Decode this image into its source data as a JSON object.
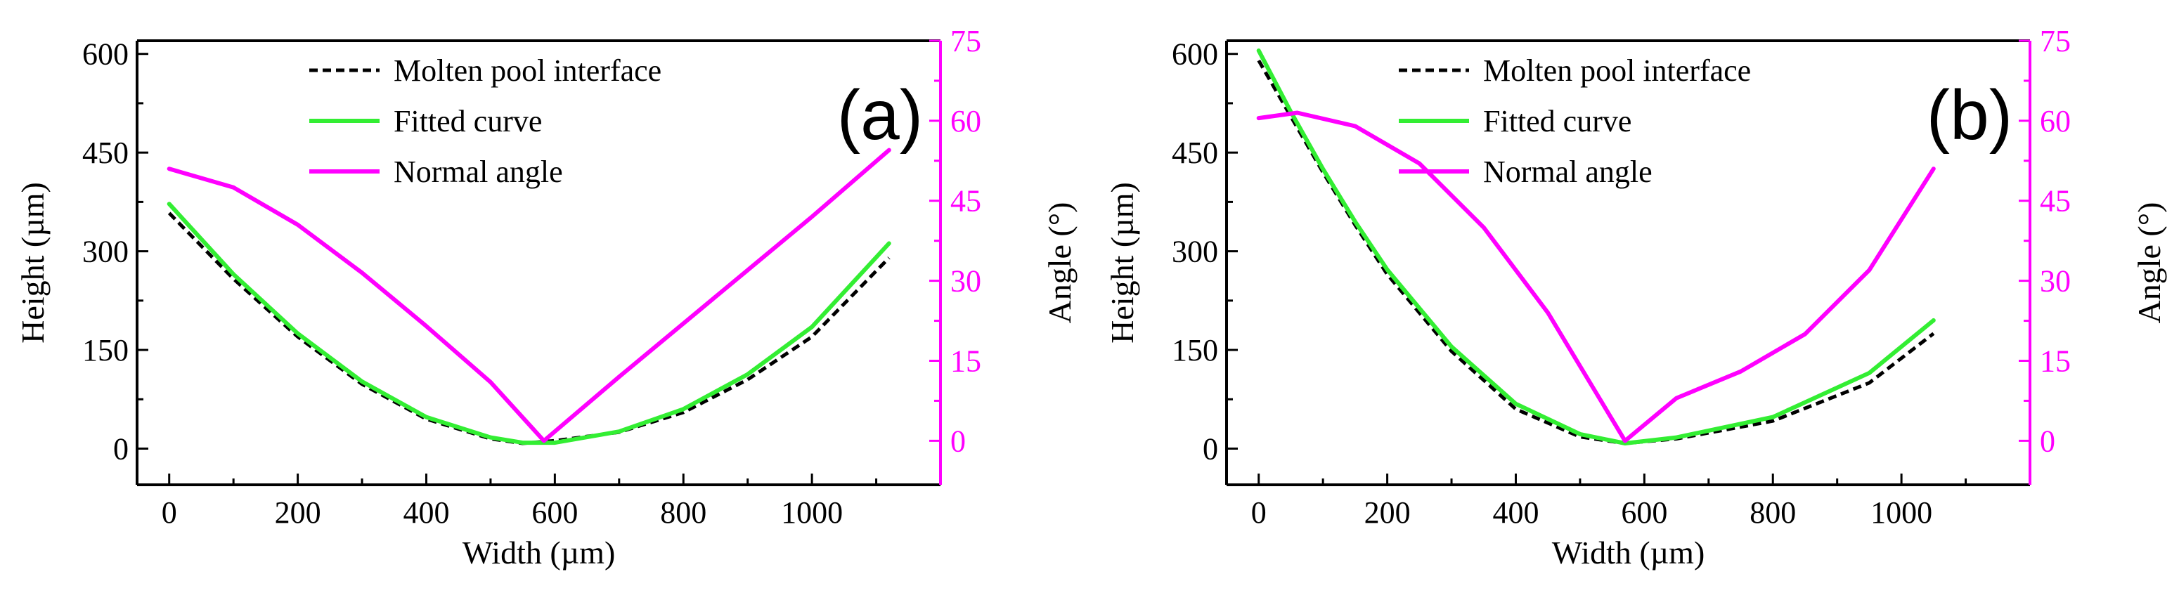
{
  "chart_data": [
    {
      "type": "line",
      "panel_label": "(a)",
      "xlabel": "Width (µm)",
      "ylabel": "Height (µm)",
      "y2label": "Angle (°)",
      "xlim": [
        -50,
        1200
      ],
      "ylim": [
        -55,
        620
      ],
      "y2lim": [
        -8.25,
        75
      ],
      "xticks": [
        0,
        200,
        400,
        600,
        800,
        1000
      ],
      "yticks": [
        0,
        150,
        300,
        450,
        600
      ],
      "y2ticks": [
        0,
        15,
        30,
        45,
        60,
        75
      ],
      "y2_color": "#ff00ff",
      "legend_position": "top-center",
      "grid": false,
      "series": [
        {
          "name": "Molten pool interface",
          "axis": "left",
          "style": "dashed",
          "color": "#000000",
          "x": [
            0,
            100,
            200,
            300,
            400,
            500,
            550,
            600,
            700,
            800,
            900,
            1000,
            1120
          ],
          "y": [
            358,
            258,
            170,
            98,
            45,
            15,
            8,
            12,
            25,
            55,
            105,
            170,
            290
          ]
        },
        {
          "name": "Fitted curve",
          "axis": "left",
          "style": "solid",
          "color": "#33ee33",
          "x": [
            0,
            100,
            200,
            300,
            400,
            500,
            550,
            600,
            700,
            800,
            900,
            1000,
            1120
          ],
          "y": [
            372,
            265,
            175,
            102,
            48,
            17,
            9,
            9,
            26,
            60,
            113,
            185,
            312
          ]
        },
        {
          "name": "Normal angle",
          "axis": "right",
          "style": "solid",
          "color": "#ff00ff",
          "x": [
            0,
            100,
            200,
            300,
            400,
            500,
            583,
            700,
            800,
            900,
            1000,
            1120
          ],
          "y": [
            51,
            47.5,
            40.5,
            31.5,
            21.5,
            11,
            0,
            12,
            22,
            32,
            42,
            54.5
          ]
        }
      ]
    },
    {
      "type": "line",
      "panel_label": "(b)",
      "xlabel": "Width (µm)",
      "ylabel": "Height (µm)",
      "y2label": "Angle (°)",
      "xlim": [
        -50,
        1200
      ],
      "ylim": [
        -55,
        620
      ],
      "y2lim": [
        -8.25,
        75
      ],
      "xticks": [
        0,
        200,
        400,
        600,
        800,
        1000
      ],
      "yticks": [
        0,
        150,
        300,
        450,
        600
      ],
      "y2ticks": [
        0,
        15,
        30,
        45,
        60,
        75
      ],
      "y2_color": "#ff00ff",
      "legend_position": "top-center",
      "grid": false,
      "series": [
        {
          "name": "Molten pool interface",
          "axis": "left",
          "style": "dashed",
          "color": "#000000",
          "x": [
            0,
            50,
            100,
            150,
            200,
            300,
            400,
            500,
            570,
            650,
            800,
            950,
            1050
          ],
          "y": [
            590,
            505,
            420,
            340,
            265,
            148,
            60,
            18,
            8,
            15,
            42,
            100,
            175
          ]
        },
        {
          "name": "Fitted curve",
          "axis": "left",
          "style": "solid",
          "color": "#33ee33",
          "x": [
            0,
            50,
            100,
            150,
            200,
            300,
            400,
            500,
            570,
            650,
            800,
            950,
            1050
          ],
          "y": [
            605,
            512,
            425,
            345,
            272,
            155,
            68,
            22,
            8,
            17,
            48,
            115,
            195
          ]
        },
        {
          "name": "Normal angle",
          "axis": "right",
          "style": "solid",
          "color": "#ff00ff",
          "x": [
            0,
            60,
            150,
            250,
            350,
            450,
            520,
            570,
            650,
            750,
            850,
            950,
            1050
          ],
          "y": [
            60.5,
            61.5,
            59,
            52,
            40,
            24,
            10,
            0,
            8,
            13,
            20,
            32,
            51
          ]
        }
      ]
    }
  ]
}
